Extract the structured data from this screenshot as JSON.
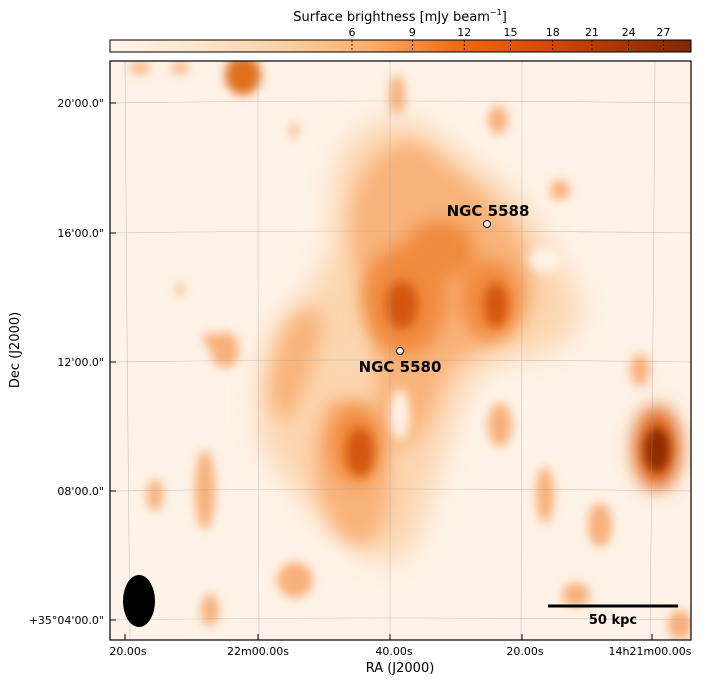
{
  "colorbar": {
    "label": "Surface brightness [mJy beam",
    "label_sup": "−1",
    "label_close": "]",
    "ticks": [
      "6",
      "9",
      "12",
      "15",
      "18",
      "21",
      "24",
      "27"
    ],
    "tick_values": [
      6,
      9,
      12,
      15,
      18,
      21,
      24,
      27
    ],
    "scale": "power",
    "min": 0,
    "max": 29.5
  },
  "axes": {
    "xlabel": "RA (J2000)",
    "ylabel": "Dec (J2000)",
    "x_ticks": [
      "20.00s",
      "22m00.00s",
      "40.00s",
      "20.00s",
      "14h21m00.00s"
    ],
    "y_ticks": [
      "20'00.0\"",
      "16'00.0\"",
      "12'00.0\"",
      "08'00.0\"",
      "+35°04'00.0\""
    ],
    "grid": true
  },
  "labels": {
    "ngc5588": "NGC 5588",
    "ngc5580": "NGC 5580",
    "scalebar": "50 kpc"
  },
  "colors": {
    "background": "#fef3e8",
    "low": "#fdd0a2",
    "mid": "#f3802a",
    "high": "#c9470a",
    "peak": "#8a2a05",
    "beam": "#000000"
  }
}
